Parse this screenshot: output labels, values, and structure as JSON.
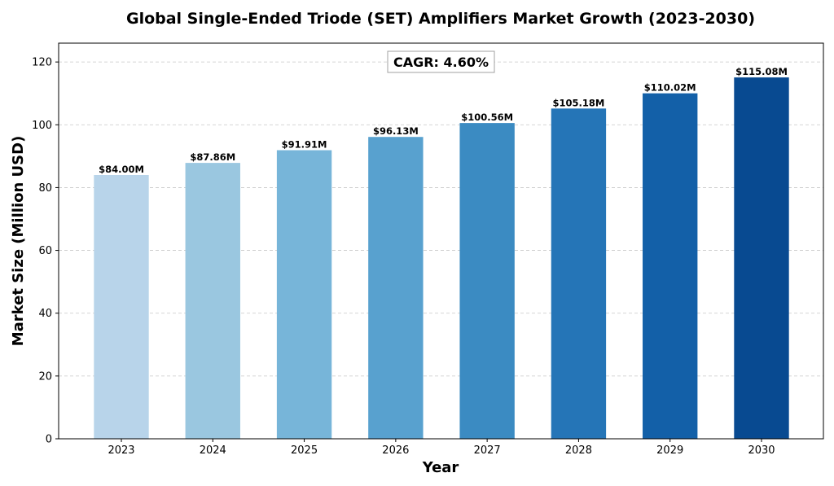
{
  "chart_data": {
    "type": "bar",
    "title": "Global Single-Ended Triode (SET) Amplifiers Market Growth (2023-2030)",
    "xlabel": "Year",
    "ylabel": "Market Size (Million USD)",
    "categories": [
      "2023",
      "2024",
      "2025",
      "2026",
      "2027",
      "2028",
      "2029",
      "2030"
    ],
    "values": [
      84.0,
      87.86,
      91.91,
      96.13,
      100.56,
      105.18,
      110.02,
      115.08
    ],
    "data_labels": [
      "$84.00M",
      "$87.86M",
      "$91.91M",
      "$96.13M",
      "$100.56M",
      "$105.18M",
      "$110.02M",
      "$115.08M"
    ],
    "bar_colors": [
      "#b8d4ea",
      "#9ac7e0",
      "#77b5d9",
      "#58a1cf",
      "#3b8bc2",
      "#2575b7",
      "#1360a8",
      "#084a91"
    ],
    "ylim": [
      0,
      126
    ],
    "yticks": [
      0,
      20,
      40,
      60,
      80,
      100,
      120
    ],
    "grid": "y-dashed",
    "annotation": "CAGR: 4.60%"
  }
}
